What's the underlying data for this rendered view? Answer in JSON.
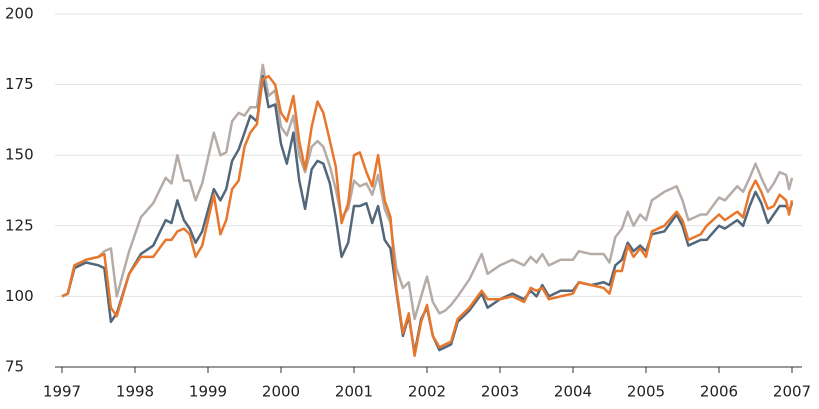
{
  "chart_data": {
    "type": "line",
    "x": [
      1997.0,
      1997.08,
      1997.17,
      1997.33,
      1997.5,
      1997.58,
      1997.67,
      1997.75,
      1997.92,
      1998.08,
      1998.25,
      1998.42,
      1998.5,
      1998.58,
      1998.67,
      1998.75,
      1998.83,
      1998.92,
      1999.08,
      1999.17,
      1999.25,
      1999.33,
      1999.42,
      1999.5,
      1999.58,
      1999.67,
      1999.75,
      1999.83,
      1999.92,
      2000.0,
      2000.08,
      2000.17,
      2000.25,
      2000.33,
      2000.42,
      2000.5,
      2000.58,
      2000.67,
      2000.75,
      2000.83,
      2000.92,
      2001.0,
      2001.08,
      2001.17,
      2001.25,
      2001.33,
      2001.42,
      2001.5,
      2001.58,
      2001.67,
      2001.75,
      2001.83,
      2001.92,
      2002.0,
      2002.08,
      2002.17,
      2002.25,
      2002.33,
      2002.42,
      2002.58,
      2002.75,
      2002.83,
      2003.0,
      2003.17,
      2003.33,
      2003.42,
      2003.5,
      2003.58,
      2003.67,
      2003.83,
      2004.0,
      2004.08,
      2004.25,
      2004.42,
      2004.5,
      2004.58,
      2004.67,
      2004.75,
      2004.83,
      2004.92,
      2005.0,
      2005.08,
      2005.25,
      2005.42,
      2005.5,
      2005.58,
      2005.75,
      2005.83,
      2006.0,
      2006.08,
      2006.25,
      2006.33,
      2006.42,
      2006.5,
      2006.58,
      2006.67,
      2006.75,
      2006.83,
      2006.92,
      2006.96,
      2007.0
    ],
    "series": [
      {
        "color": "#b5aca7",
        "values": [
          100,
          101,
          111,
          113,
          114,
          116,
          117,
          100,
          116,
          128,
          133,
          142,
          140,
          150,
          141,
          141,
          134,
          140,
          158,
          150,
          151,
          162,
          165,
          164,
          167,
          167,
          182,
          171,
          173,
          160,
          157,
          164,
          150,
          144,
          153,
          155,
          153,
          146,
          138,
          128,
          131,
          141,
          139,
          140,
          136,
          143,
          131,
          126,
          110,
          103,
          105,
          92,
          100,
          107,
          98,
          94,
          95,
          97,
          100,
          106,
          115,
          108,
          111,
          113,
          111,
          114,
          112,
          115,
          111,
          113,
          113,
          116,
          115,
          115,
          112,
          121,
          124,
          130,
          125,
          129,
          127,
          134,
          137,
          139,
          134,
          127,
          129,
          129,
          135,
          134,
          139,
          137,
          142,
          147,
          142,
          137,
          140,
          144,
          143,
          138,
          142
        ]
      },
      {
        "color": "#52677a",
        "values": [
          100,
          101,
          110,
          112,
          111,
          110,
          91,
          94,
          108,
          115,
          118,
          127,
          126,
          134,
          127,
          124,
          119,
          123,
          138,
          134,
          138,
          148,
          152,
          158,
          164,
          162,
          178,
          167,
          168,
          154,
          147,
          158,
          141,
          131,
          145,
          148,
          147,
          140,
          128,
          114,
          119,
          132,
          132,
          133,
          126,
          132,
          120,
          117,
          102,
          86,
          93,
          80,
          92,
          96,
          86,
          81,
          82,
          83,
          91,
          95,
          101,
          96,
          99,
          101,
          99,
          102,
          100,
          104,
          100,
          102,
          102,
          105,
          104,
          105,
          104,
          111,
          113,
          119,
          116,
          118,
          116,
          122,
          123,
          129,
          125,
          118,
          120,
          120,
          125,
          124,
          127,
          125,
          132,
          137,
          133,
          126,
          129,
          132,
          132,
          130,
          133
        ]
      },
      {
        "color": "#e8772e",
        "values": [
          100,
          101,
          111,
          113,
          114,
          115,
          96,
          93,
          108,
          114,
          114,
          120,
          120,
          123,
          124,
          122,
          114,
          118,
          136,
          122,
          127,
          138,
          141,
          153,
          158,
          161,
          177,
          178,
          175,
          165,
          162,
          171,
          155,
          145,
          160,
          169,
          165,
          155,
          146,
          126,
          133,
          150,
          151,
          144,
          139,
          150,
          134,
          128,
          103,
          87,
          94,
          79,
          91,
          97,
          86,
          82,
          83,
          84,
          92,
          96,
          102,
          99,
          99,
          100,
          98,
          103,
          102,
          103,
          99,
          100,
          101,
          105,
          104,
          103,
          101,
          109,
          109,
          118,
          114,
          117,
          114,
          123,
          125,
          130,
          127,
          120,
          122,
          125,
          129,
          127,
          130,
          128,
          137,
          141,
          137,
          131,
          132,
          136,
          134,
          129,
          134
        ]
      }
    ],
    "xlim": [
      1997,
      2007
    ],
    "xticks": [
      1997,
      1998,
      1999,
      2000,
      2001,
      2002,
      2003,
      2004,
      2005,
      2006,
      2007
    ],
    "ylim": [
      75,
      200
    ],
    "yticks": [
      75,
      100,
      125,
      150,
      175,
      200
    ],
    "grid": true
  }
}
